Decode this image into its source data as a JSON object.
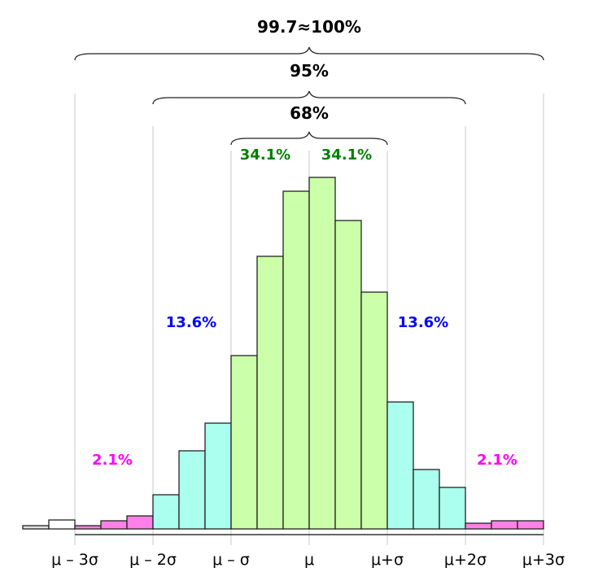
{
  "chart_data": {
    "type": "bar",
    "title": "",
    "xlabel": "",
    "ylabel": "",
    "bin_width_sigma": 0.333,
    "x_range_sigma": [
      -3.67,
      3
    ],
    "bins": [
      {
        "from": -3.667,
        "value": 4,
        "group": "outside"
      },
      {
        "from": -3.333,
        "value": 11,
        "group": "outside2"
      },
      {
        "from": -3.0,
        "value": 4,
        "group": "tail"
      },
      {
        "from": -2.667,
        "value": 10,
        "group": "tail"
      },
      {
        "from": -2.333,
        "value": 16,
        "group": "tail"
      },
      {
        "from": -2.0,
        "value": 42,
        "group": "mid"
      },
      {
        "from": -1.667,
        "value": 96,
        "group": "mid"
      },
      {
        "from": -1.333,
        "value": 130,
        "group": "mid"
      },
      {
        "from": -1.0,
        "value": 213,
        "group": "center"
      },
      {
        "from": -0.667,
        "value": 335,
        "group": "center"
      },
      {
        "from": -0.333,
        "value": 415,
        "group": "center"
      },
      {
        "from": 0.0,
        "value": 432,
        "group": "center"
      },
      {
        "from": 0.333,
        "value": 379,
        "group": "center"
      },
      {
        "from": 0.667,
        "value": 291,
        "group": "center"
      },
      {
        "from": 1.0,
        "value": 156,
        "group": "mid"
      },
      {
        "from": 1.333,
        "value": 73,
        "group": "mid"
      },
      {
        "from": 1.667,
        "value": 51,
        "group": "mid"
      },
      {
        "from": 2.0,
        "value": 7,
        "group": "tail"
      },
      {
        "from": 2.333,
        "value": 10,
        "group": "tail"
      },
      {
        "from": 2.667,
        "value": 10,
        "group": "tail"
      }
    ],
    "colors": {
      "outside": "#e0e0e0",
      "outside2": "#ffffff",
      "tail": "#ff80e6",
      "mid": "#aaffee",
      "center": "#ccffaa"
    },
    "tick_labels": [
      "μ – 3σ",
      "μ – 2σ",
      "μ – σ",
      "μ",
      "μ+σ",
      "μ+2σ",
      "μ+3σ"
    ],
    "ticks_sigma": [
      -3,
      -2,
      -1,
      0,
      1,
      2,
      3
    ],
    "annotations": {
      "brace_3sigma": "99.7≈100%",
      "brace_2sigma": "95%",
      "brace_1sigma": "68%",
      "center_left": "34.1%",
      "center_right": "34.1%",
      "mid_left": "13.6%",
      "mid_right": "13.6%",
      "tail_left": "2.1%",
      "tail_right": "2.1%"
    },
    "annotation_colors": {
      "center": "#008000",
      "mid": "#0000ff",
      "tail": "#ff00ff",
      "brace": "#000000"
    }
  }
}
